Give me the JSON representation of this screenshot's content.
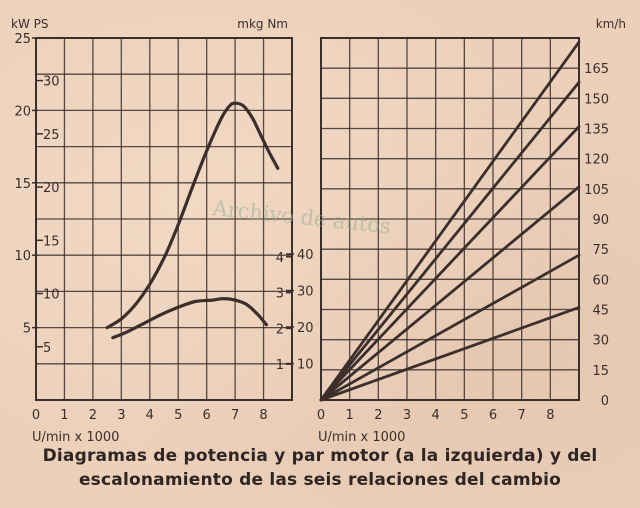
{
  "chart_data": [
    {
      "type": "line",
      "title": "",
      "xlabel": "U/min x 1000",
      "x_ticks": [
        "0",
        "1",
        "2",
        "3",
        "4",
        "5",
        "6",
        "7",
        "8"
      ],
      "xlim": [
        0,
        9
      ],
      "left_axis_label": "kW PS",
      "left_kw_ticks": [
        "5",
        "10",
        "15",
        "20",
        "25"
      ],
      "left_ps_ticks": [
        "5",
        "10",
        "15",
        "20",
        "25",
        "30"
      ],
      "right_axis_label": "mkg Nm",
      "right_nm_ticks": [
        "10",
        "20",
        "30",
        "40"
      ],
      "right_mkg_ticks": [
        "1",
        "2",
        "3",
        "4"
      ],
      "ylim_kw": [
        0,
        25
      ],
      "grid": true,
      "series": [
        {
          "axis": "kW",
          "x": [
            2.5,
            3.0,
            3.5,
            4.0,
            4.5,
            5.0,
            5.5,
            6.0,
            6.5,
            6.8,
            7.0,
            7.3,
            7.6,
            7.9,
            8.2,
            8.5
          ],
          "y": [
            5.0,
            5.6,
            6.6,
            8.0,
            9.8,
            12.1,
            14.7,
            17.2,
            19.4,
            20.3,
            20.5,
            20.3,
            19.5,
            18.3,
            17.1,
            16.0
          ]
        },
        {
          "axis": "kW",
          "x": [
            2.7,
            3.2,
            3.8,
            4.4,
            5.0,
            5.6,
            6.2,
            6.6,
            7.0,
            7.4,
            7.8,
            8.1
          ],
          "y": [
            4.3,
            4.7,
            5.3,
            5.9,
            6.4,
            6.8,
            6.9,
            7.0,
            6.9,
            6.6,
            5.9,
            5.2
          ]
        }
      ]
    },
    {
      "type": "line",
      "title": "",
      "xlabel": "U/min x 1000",
      "x_ticks": [
        "0",
        "1",
        "2",
        "3",
        "4",
        "5",
        "6",
        "7",
        "8"
      ],
      "xlim": [
        0,
        9
      ],
      "ylabel": "km/h",
      "y_ticks": [
        "0",
        "15",
        "30",
        "45",
        "60",
        "75",
        "90",
        "105",
        "120",
        "135",
        "150",
        "165"
      ],
      "ylim": [
        0,
        180
      ],
      "grid": true,
      "series": [
        {
          "x": [
            0,
            9
          ],
          "y": [
            0,
            46
          ]
        },
        {
          "x": [
            0,
            9
          ],
          "y": [
            0,
            72
          ]
        },
        {
          "x": [
            0,
            9
          ],
          "y": [
            0,
            106
          ]
        },
        {
          "x": [
            0,
            9
          ],
          "y": [
            0,
            136
          ]
        },
        {
          "x": [
            0,
            9
          ],
          "y": [
            0,
            158
          ]
        },
        {
          "x": [
            0,
            9
          ],
          "y": [
            0,
            178
          ]
        }
      ]
    }
  ],
  "caption": {
    "line1": "Diagramas de potencia y par motor (a la izquierda) y del",
    "line2": "escalonamiento de las seis relaciones del cambio"
  },
  "watermark": "Archivo de autos",
  "colors": {
    "paper": "#ecd0ba",
    "ink": "#3a2f2c",
    "watermark": "#96af96"
  }
}
